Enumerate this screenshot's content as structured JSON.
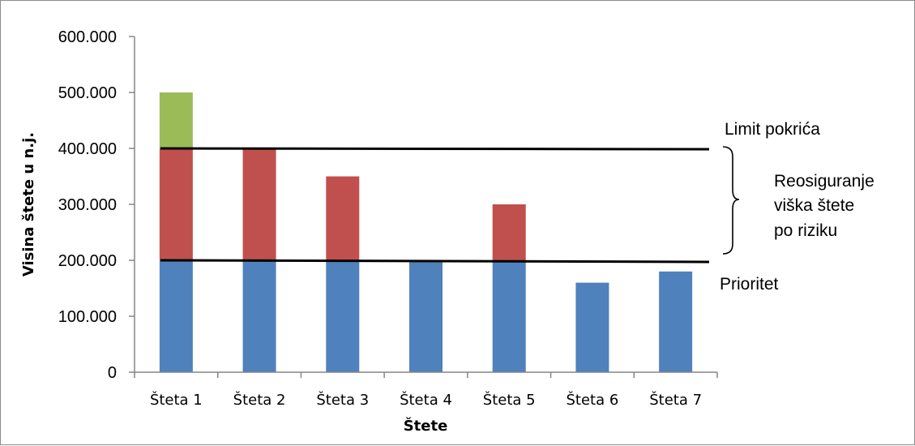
{
  "chart_data": {
    "type": "bar",
    "stacked": true,
    "categories": [
      "Šteta 1",
      "Šteta 2",
      "Šteta 3",
      "Šteta 4",
      "Šteta 5",
      "Šteta 6",
      "Šteta 7"
    ],
    "series": [
      {
        "color": "#4f81bd",
        "values": [
          200000,
          200000,
          200000,
          200000,
          200000,
          160000,
          180000
        ]
      },
      {
        "color": "#c0504d",
        "values": [
          200000,
          200000,
          150000,
          0,
          100000,
          0,
          0
        ]
      },
      {
        "color": "#9bbb59",
        "values": [
          100000,
          0,
          0,
          0,
          0,
          0,
          0
        ]
      }
    ],
    "yticks": [
      "0",
      "100.000",
      "200.000",
      "300.000",
      "400.000",
      "500.000",
      "600.000"
    ],
    "ylim": [
      0,
      600000
    ],
    "xlabel": "Štete",
    "ylabel": "Visina štete u n.j.",
    "grid": false,
    "reference_lines": [
      {
        "label": "Limit pokrića",
        "value": 400000
      },
      {
        "label": "Prioritet",
        "value": 200000
      }
    ],
    "brace_annotation": [
      "Reosiguranje",
      "viška štete",
      "po riziku"
    ]
  }
}
